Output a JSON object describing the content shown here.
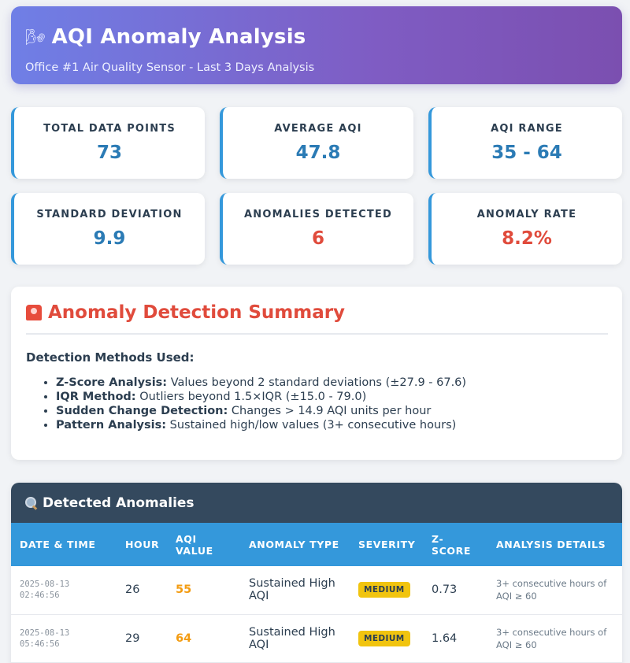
{
  "header": {
    "title": "AQI Anomaly Analysis",
    "subtitle": "Office #1 Air Quality Sensor - Last 3 Days Analysis",
    "icon": "wind-icon"
  },
  "stats": [
    {
      "label": "TOTAL DATA POINTS",
      "value": "73"
    },
    {
      "label": "AVERAGE AQI",
      "value": "47.8"
    },
    {
      "label": "AQI RANGE",
      "value": "35 - 64"
    },
    {
      "label": "STANDARD DEVIATION",
      "value": "9.9"
    },
    {
      "label": "ANOMALIES DETECTED",
      "value": "6"
    },
    {
      "label": "ANOMALY RATE",
      "value": "8.2%"
    }
  ],
  "summary": {
    "title": "Anomaly Detection Summary",
    "icon": "siren-icon",
    "methods_heading": "Detection Methods Used:",
    "methods": [
      {
        "name": "Z-Score Analysis:",
        "desc": "Values beyond 2 standard deviations (±27.9 - 67.6)"
      },
      {
        "name": "IQR Method:",
        "desc": "Outliers beyond 1.5×IQR (±15.0 - 79.0)"
      },
      {
        "name": "Sudden Change Detection:",
        "desc": "Changes > 14.9 AQI units per hour"
      },
      {
        "name": "Pattern Analysis:",
        "desc": "Sustained high/low values (3+ consecutive hours)"
      }
    ]
  },
  "anomalies": {
    "title": "Detected Anomalies",
    "icon": "magnifier-icon",
    "columns": [
      "DATE & TIME",
      "HOUR",
      "AQI VALUE",
      "ANOMALY TYPE",
      "SEVERITY",
      "Z-SCORE",
      "ANALYSIS DETAILS"
    ],
    "rows": [
      {
        "date": "2025-08-13",
        "time": "02:46:56",
        "hour": "26",
        "aqi": "55",
        "type": "Sustained High AQI",
        "severity": "MEDIUM",
        "z": "0.73",
        "details": "3+ consecutive hours of AQI ≥ 60"
      },
      {
        "date": "2025-08-13",
        "time": "05:46:56",
        "hour": "29",
        "aqi": "64",
        "type": "Sustained High AQI",
        "severity": "MEDIUM",
        "z": "1.64",
        "details": "3+ consecutive hours of AQI ≥ 60"
      }
    ]
  },
  "colors": {
    "accent": "#3498db",
    "alert": "#e04b3c",
    "medium": "#f1c40f",
    "aqi_value": "#f39c12",
    "dark": "#34495e"
  }
}
